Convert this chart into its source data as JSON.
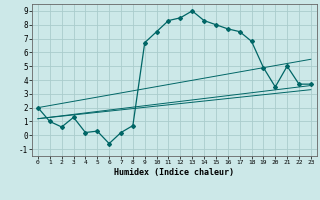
{
  "xlabel": "Humidex (Indice chaleur)",
  "bg_color": "#cce8e8",
  "grid_color": "#aacccc",
  "line_color": "#006666",
  "xlim": [
    -0.5,
    23.5
  ],
  "ylim": [
    -1.5,
    9.5
  ],
  "xticks": [
    0,
    1,
    2,
    3,
    4,
    5,
    6,
    7,
    8,
    9,
    10,
    11,
    12,
    13,
    14,
    15,
    16,
    17,
    18,
    19,
    20,
    21,
    22,
    23
  ],
  "yticks": [
    -1,
    0,
    1,
    2,
    3,
    4,
    5,
    6,
    7,
    8,
    9
  ],
  "series1_x": [
    0,
    1,
    2,
    3,
    4,
    5,
    6,
    7,
    8,
    9,
    10,
    11,
    12,
    13,
    14,
    15,
    16,
    17,
    18,
    19,
    20,
    21,
    22,
    23
  ],
  "series1_y": [
    2.0,
    1.0,
    0.6,
    1.3,
    0.2,
    0.3,
    -0.6,
    0.2,
    0.7,
    6.7,
    7.5,
    8.3,
    8.5,
    9.0,
    8.3,
    8.0,
    7.7,
    7.5,
    6.8,
    4.9,
    3.5,
    5.0,
    3.7,
    3.7
  ],
  "series2_x": [
    0,
    23
  ],
  "series2_y": [
    2.0,
    5.5
  ],
  "series3_x": [
    0,
    23
  ],
  "series3_y": [
    1.2,
    3.3
  ],
  "series4_x": [
    0,
    23
  ],
  "series4_y": [
    1.2,
    3.6
  ]
}
